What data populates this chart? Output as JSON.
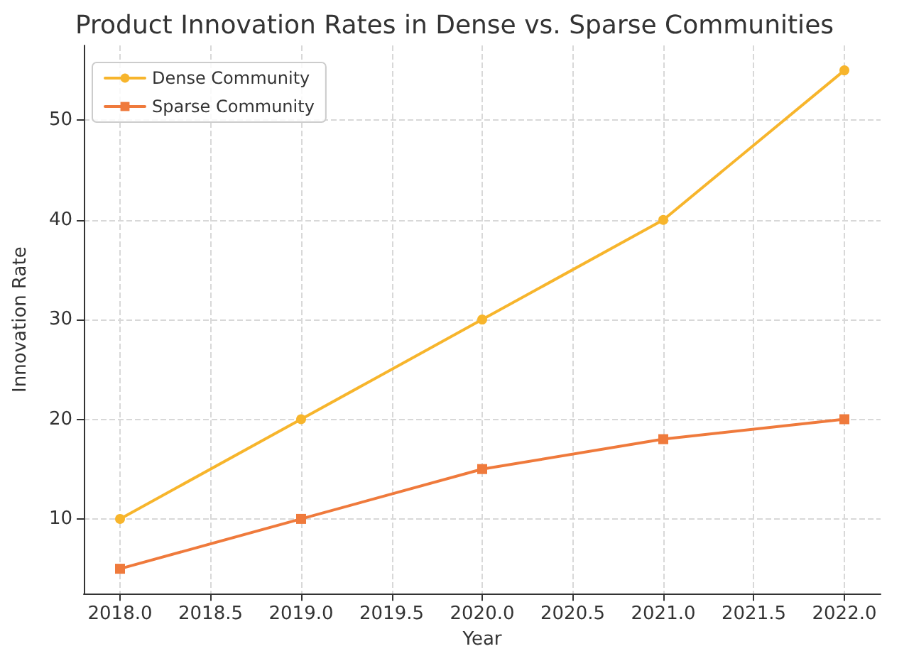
{
  "chart_data": {
    "type": "line",
    "title": "Product Innovation Rates in Dense vs. Sparse Communities",
    "xlabel": "Year",
    "ylabel": "Innovation Rate",
    "x": [
      2018,
      2019,
      2020,
      2021,
      2022
    ],
    "series": [
      {
        "name": "Dense Community",
        "color": "#f7b52c",
        "marker": "circle",
        "values": [
          10,
          20,
          30,
          40,
          55
        ]
      },
      {
        "name": "Sparse Community",
        "color": "#ef7a3c",
        "marker": "square",
        "values": [
          5,
          10,
          15,
          18,
          20
        ]
      }
    ],
    "xlim": [
      2017.8,
      2022.2
    ],
    "xticks": [
      {
        "value": 2018,
        "label": "2018.0"
      },
      {
        "value": 2018.5,
        "label": "2018.5"
      },
      {
        "value": 2019,
        "label": "2019.0"
      },
      {
        "value": 2019.5,
        "label": "2019.5"
      },
      {
        "value": 2020,
        "label": "2020.0"
      },
      {
        "value": 2020.5,
        "label": "2020.5"
      },
      {
        "value": 2021,
        "label": "2021.0"
      },
      {
        "value": 2021.5,
        "label": "2021.5"
      },
      {
        "value": 2022,
        "label": "2022.0"
      }
    ],
    "ylim": [
      2.5,
      57.5
    ],
    "yticks": [
      10,
      20,
      30,
      40,
      50
    ],
    "grid": true,
    "legend": "top left",
    "line_style": "solid"
  }
}
